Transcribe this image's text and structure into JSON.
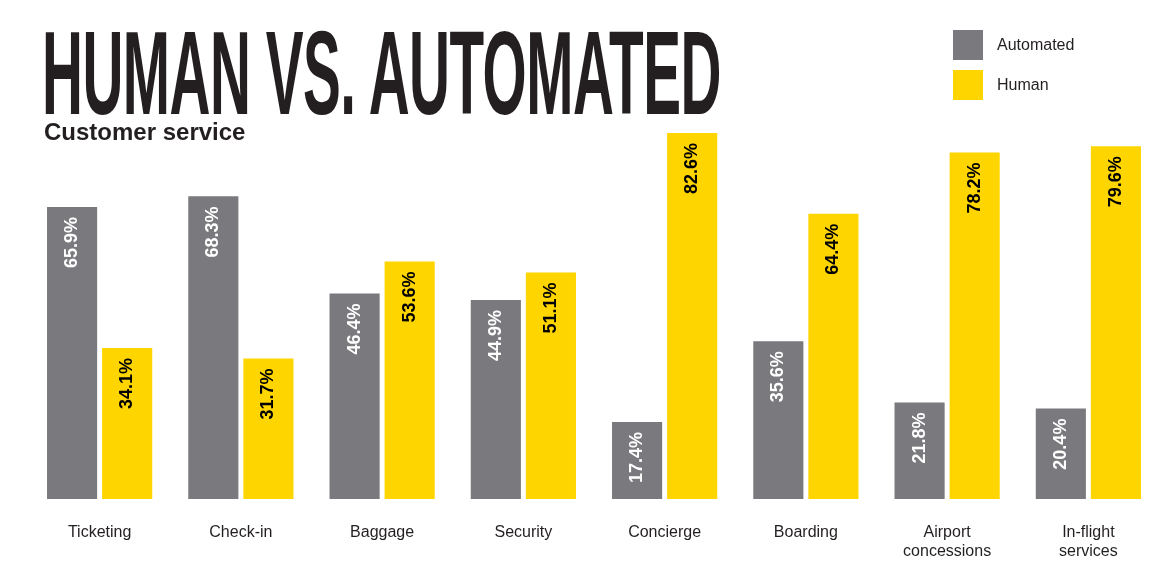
{
  "chart_data": {
    "type": "bar",
    "title": "HUMAN VS. AUTOMATED",
    "subtitle": "Customer service",
    "categories": [
      "Ticketing",
      "Check-in",
      "Baggage",
      "Security",
      "Concierge",
      "Boarding",
      "Airport concessions",
      "In-flight services"
    ],
    "series": [
      {
        "name": "Automated",
        "color": "#7a7a7e",
        "values": [
          65.9,
          68.3,
          46.4,
          44.9,
          17.4,
          35.6,
          21.8,
          20.4
        ],
        "value_labels": [
          "65.9%",
          "68.3%",
          "46.4%",
          "44.9%",
          "17.4%",
          "35.6%",
          "21.8%",
          "20.4%"
        ]
      },
      {
        "name": "Human",
        "color": "#ffd500",
        "values": [
          34.1,
          31.7,
          53.6,
          51.1,
          82.6,
          64.4,
          78.2,
          79.6
        ],
        "value_labels": [
          "34.1%",
          "31.7%",
          "53.6%",
          "51.1%",
          "82.6%",
          "64.4%",
          "78.2%",
          "79.6%"
        ]
      }
    ],
    "legend": "top right"
  }
}
